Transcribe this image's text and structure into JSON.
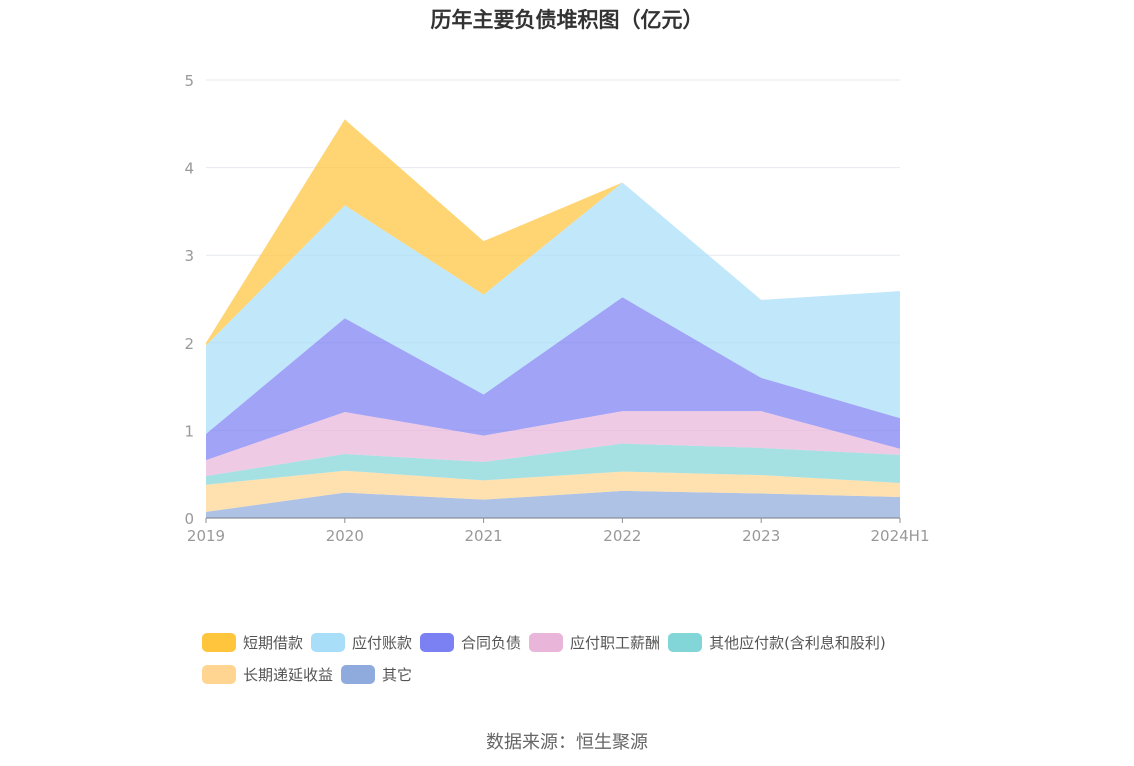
{
  "chart_data": {
    "type": "area",
    "stacked": true,
    "title": "历年主要负债堆积图（亿元）",
    "categories": [
      "2019",
      "2020",
      "2021",
      "2022",
      "2023",
      "2024H1"
    ],
    "yticks": [
      "0",
      "1",
      "2",
      "3",
      "4",
      "5"
    ],
    "ylim": [
      0,
      5
    ],
    "grid": true,
    "legend_position": "bottom",
    "series": [
      {
        "name": "其它",
        "color": "#8faadc",
        "values": [
          0.07,
          0.29,
          0.21,
          0.31,
          0.28,
          0.24
        ]
      },
      {
        "name": "长期递延收益",
        "color": "#ffd591",
        "values": [
          0.31,
          0.25,
          0.22,
          0.22,
          0.21,
          0.16
        ]
      },
      {
        "name": "其他应付款(含利息和股利)",
        "color": "#82d6d8",
        "values": [
          0.1,
          0.19,
          0.21,
          0.32,
          0.31,
          0.32
        ]
      },
      {
        "name": "应付职工薪酬",
        "color": "#e9b6d9",
        "values": [
          0.18,
          0.48,
          0.3,
          0.37,
          0.42,
          0.07
        ]
      },
      {
        "name": "合同负债",
        "color": "#7b80f2",
        "values": [
          0.3,
          1.07,
          0.47,
          1.3,
          0.38,
          0.35
        ]
      },
      {
        "name": "应付账款",
        "color": "#a9def9",
        "values": [
          1.01,
          1.29,
          1.14,
          1.31,
          0.89,
          1.45
        ]
      },
      {
        "name": "短期借款",
        "color": "#ffc53d",
        "values": [
          0.03,
          0.98,
          0.61,
          0.0,
          0.0,
          0.0
        ]
      }
    ],
    "legend_order": [
      "短期借款",
      "应付账款",
      "合同负债",
      "应付职工薪酬",
      "其他应付款(含利息和股利)",
      "长期递延收益",
      "其它"
    ]
  },
  "source_text": "数据来源：恒生聚源"
}
